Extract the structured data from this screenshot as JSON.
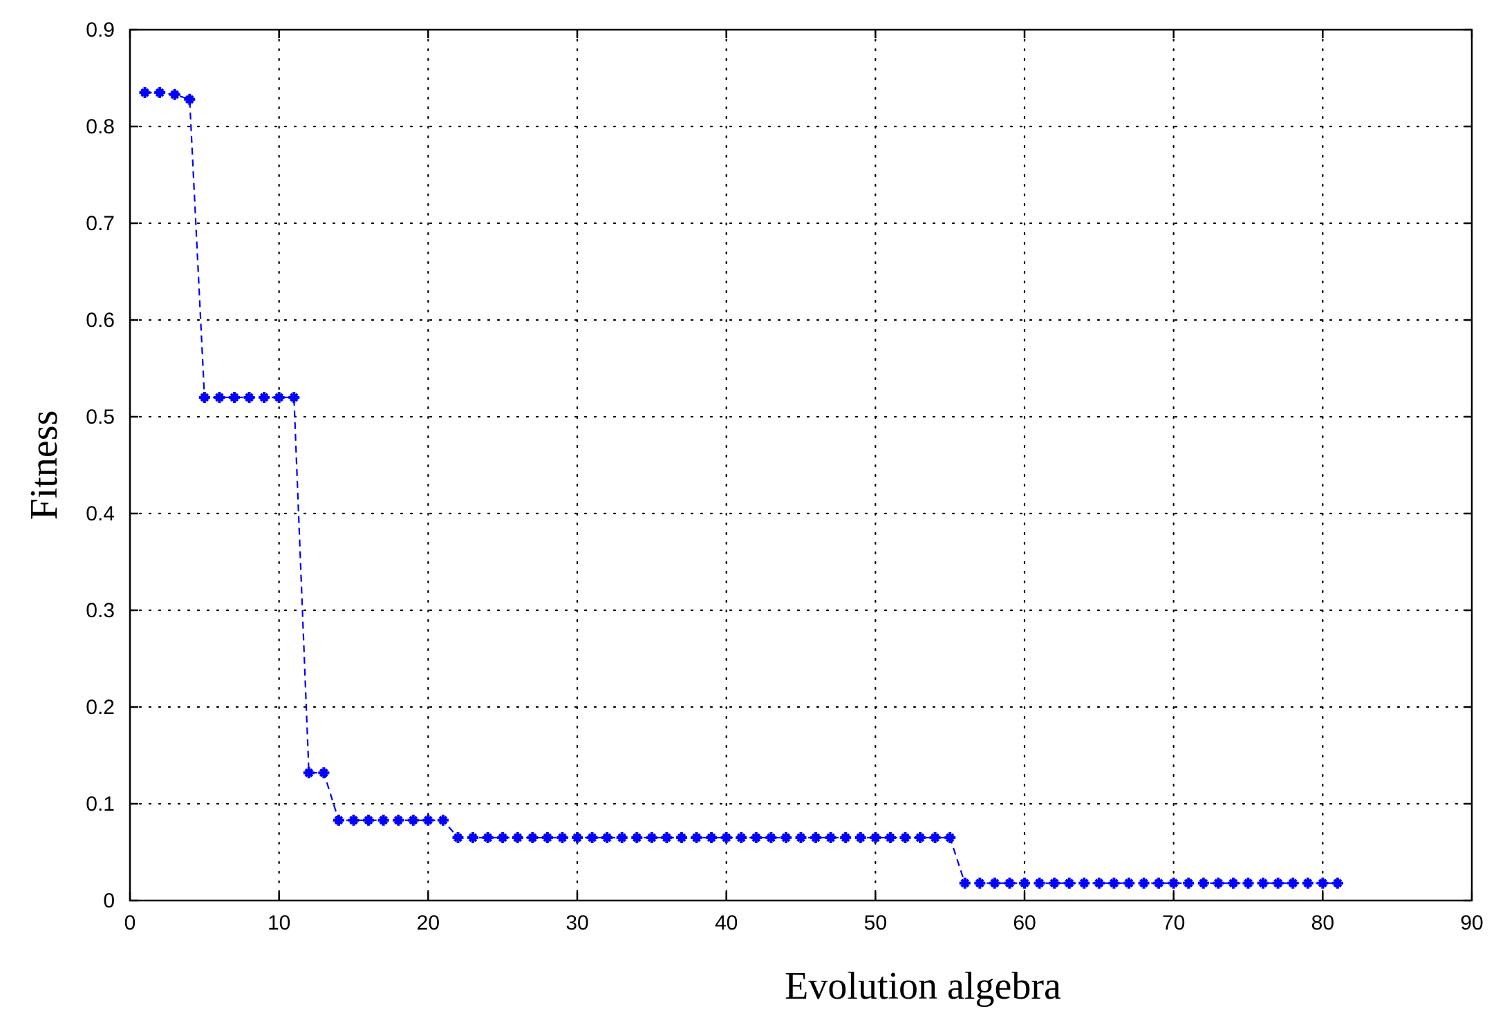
{
  "chart_data": {
    "type": "line",
    "title": "",
    "xlabel": "Evolution algebra",
    "ylabel": "Fitness",
    "xlim": [
      0,
      90
    ],
    "ylim": [
      0,
      0.9
    ],
    "xticks": [
      0,
      10,
      20,
      30,
      40,
      50,
      60,
      70,
      80,
      90
    ],
    "yticks": [
      0,
      0.1,
      0.2,
      0.3,
      0.4,
      0.5,
      0.6,
      0.7,
      0.8,
      0.9
    ],
    "xtick_labels": [
      "0",
      "10",
      "20",
      "30",
      "40",
      "50",
      "60",
      "70",
      "80",
      "90"
    ],
    "ytick_labels": [
      "0",
      "0.1",
      "0.2",
      "0.3",
      "0.4",
      "0.5",
      "0.6",
      "0.7",
      "0.8",
      "0.9"
    ],
    "grid": true,
    "legend": "none",
    "series_color": "#0000ff",
    "marker": "plus",
    "line_style": "dashed",
    "series": [
      {
        "x": [
          1,
          2,
          3,
          4,
          5,
          6,
          7,
          8,
          9,
          10,
          11,
          12,
          13,
          14,
          15,
          16,
          17,
          18,
          19,
          20,
          21,
          22,
          23,
          24,
          25,
          26,
          27,
          28,
          29,
          30,
          31,
          32,
          33,
          34,
          35,
          36,
          37,
          38,
          39,
          40,
          41,
          42,
          43,
          44,
          45,
          46,
          47,
          48,
          49,
          50,
          51,
          52,
          53,
          54,
          55,
          56,
          57,
          58,
          59,
          60,
          61,
          62,
          63,
          64,
          65,
          66,
          67,
          68,
          69,
          70,
          71,
          72,
          73,
          74,
          75,
          76,
          77,
          78,
          79,
          80,
          81
        ],
        "y": [
          0.835,
          0.835,
          0.833,
          0.828,
          0.52,
          0.52,
          0.52,
          0.52,
          0.52,
          0.52,
          0.52,
          0.132,
          0.132,
          0.083,
          0.083,
          0.083,
          0.083,
          0.083,
          0.083,
          0.083,
          0.083,
          0.065,
          0.065,
          0.065,
          0.065,
          0.065,
          0.065,
          0.065,
          0.065,
          0.065,
          0.065,
          0.065,
          0.065,
          0.065,
          0.065,
          0.065,
          0.065,
          0.065,
          0.065,
          0.065,
          0.065,
          0.065,
          0.065,
          0.065,
          0.065,
          0.065,
          0.065,
          0.065,
          0.065,
          0.065,
          0.065,
          0.065,
          0.065,
          0.065,
          0.065,
          0.018,
          0.018,
          0.018,
          0.018,
          0.018,
          0.018,
          0.018,
          0.018,
          0.018,
          0.018,
          0.018,
          0.018,
          0.018,
          0.018,
          0.018,
          0.018,
          0.018,
          0.018,
          0.018,
          0.018,
          0.018,
          0.018,
          0.018,
          0.018,
          0.018,
          0.018
        ]
      }
    ]
  }
}
